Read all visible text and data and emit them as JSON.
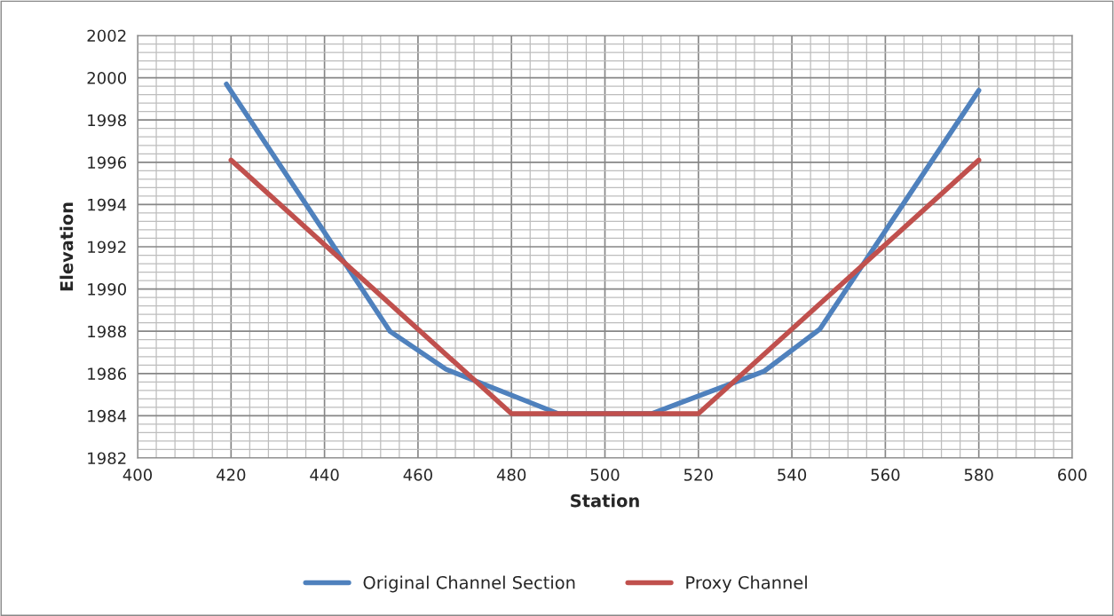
{
  "chart_data": {
    "type": "line",
    "xlabel": "Station",
    "ylabel": "Elevation",
    "xlim": [
      400,
      600
    ],
    "xticks": [
      400,
      420,
      440,
      460,
      480,
      500,
      520,
      540,
      560,
      580,
      600
    ],
    "ylim": [
      1982,
      2002
    ],
    "yticks": [
      1982,
      1984,
      1986,
      1988,
      1990,
      1992,
      1994,
      1996,
      1998,
      2000,
      2002
    ],
    "grid": true,
    "legend": "bottom",
    "marker": "none",
    "line_style": "solid",
    "series": [
      {
        "name": "Original Channel Section",
        "color": "#4f81bd",
        "x": [
          419,
          454,
          466,
          490,
          510,
          534,
          546,
          580
        ],
        "values": [
          1999.7,
          1988.0,
          1986.2,
          1984.1,
          1984.1,
          1986.1,
          1988.1,
          1999.4
        ]
      },
      {
        "name": "Proxy Channel",
        "color": "#c0504d",
        "x": [
          420,
          480,
          520,
          580
        ],
        "values": [
          1996.1,
          1984.1,
          1984.1,
          1996.1
        ]
      }
    ]
  }
}
